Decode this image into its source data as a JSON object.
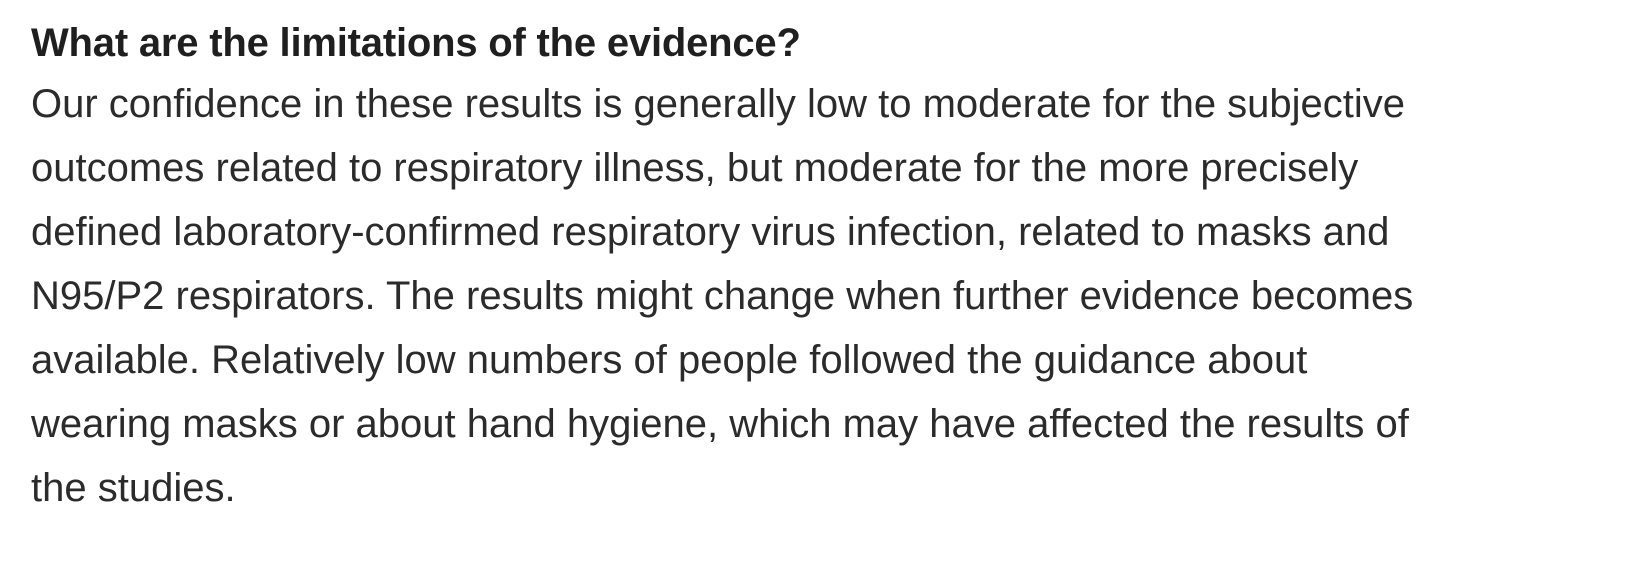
{
  "section": {
    "heading": "What are the limitations of the evidence?",
    "paragraph_lines": [
      "Our confidence in these results is generally low to moderate for the subjective",
      "outcomes related to respiratory illness, but moderate for the more precisely",
      "defined laboratory-confirmed respiratory virus infection, related to masks and",
      "N95/P2 respirators. The results might change when further evidence becomes",
      "available. Relatively low numbers of people followed the guidance about",
      "wearing masks or about hand hygiene, which may have affected the results of",
      "the studies."
    ]
  }
}
